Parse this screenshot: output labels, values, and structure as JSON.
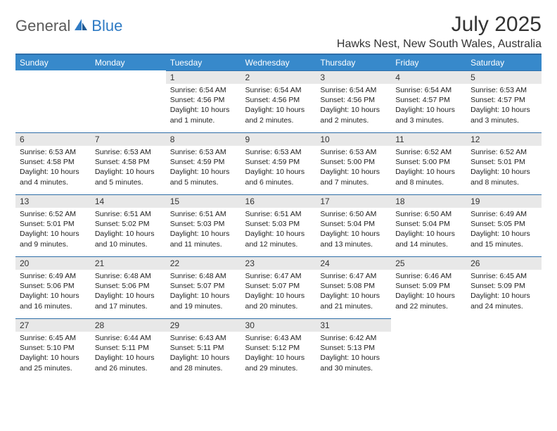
{
  "logo": {
    "general": "General",
    "blue": "Blue"
  },
  "title": "July 2025",
  "location": "Hawks Nest, New South Wales, Australia",
  "colors": {
    "header_bg": "#3789cb",
    "header_border": "#2f6ea8",
    "day_num_bg": "#e8e8e8",
    "logo_blue": "#2f7bc4",
    "logo_grey": "#5a5a5a"
  },
  "weekdays": [
    "Sunday",
    "Monday",
    "Tuesday",
    "Wednesday",
    "Thursday",
    "Friday",
    "Saturday"
  ],
  "weeks": [
    [
      null,
      null,
      {
        "n": "1",
        "sr": "Sunrise: 6:54 AM",
        "ss": "Sunset: 4:56 PM",
        "d1": "Daylight: 10 hours",
        "d2": "and 1 minute."
      },
      {
        "n": "2",
        "sr": "Sunrise: 6:54 AM",
        "ss": "Sunset: 4:56 PM",
        "d1": "Daylight: 10 hours",
        "d2": "and 2 minutes."
      },
      {
        "n": "3",
        "sr": "Sunrise: 6:54 AM",
        "ss": "Sunset: 4:56 PM",
        "d1": "Daylight: 10 hours",
        "d2": "and 2 minutes."
      },
      {
        "n": "4",
        "sr": "Sunrise: 6:54 AM",
        "ss": "Sunset: 4:57 PM",
        "d1": "Daylight: 10 hours",
        "d2": "and 3 minutes."
      },
      {
        "n": "5",
        "sr": "Sunrise: 6:53 AM",
        "ss": "Sunset: 4:57 PM",
        "d1": "Daylight: 10 hours",
        "d2": "and 3 minutes."
      }
    ],
    [
      {
        "n": "6",
        "sr": "Sunrise: 6:53 AM",
        "ss": "Sunset: 4:58 PM",
        "d1": "Daylight: 10 hours",
        "d2": "and 4 minutes."
      },
      {
        "n": "7",
        "sr": "Sunrise: 6:53 AM",
        "ss": "Sunset: 4:58 PM",
        "d1": "Daylight: 10 hours",
        "d2": "and 5 minutes."
      },
      {
        "n": "8",
        "sr": "Sunrise: 6:53 AM",
        "ss": "Sunset: 4:59 PM",
        "d1": "Daylight: 10 hours",
        "d2": "and 5 minutes."
      },
      {
        "n": "9",
        "sr": "Sunrise: 6:53 AM",
        "ss": "Sunset: 4:59 PM",
        "d1": "Daylight: 10 hours",
        "d2": "and 6 minutes."
      },
      {
        "n": "10",
        "sr": "Sunrise: 6:53 AM",
        "ss": "Sunset: 5:00 PM",
        "d1": "Daylight: 10 hours",
        "d2": "and 7 minutes."
      },
      {
        "n": "11",
        "sr": "Sunrise: 6:52 AM",
        "ss": "Sunset: 5:00 PM",
        "d1": "Daylight: 10 hours",
        "d2": "and 8 minutes."
      },
      {
        "n": "12",
        "sr": "Sunrise: 6:52 AM",
        "ss": "Sunset: 5:01 PM",
        "d1": "Daylight: 10 hours",
        "d2": "and 8 minutes."
      }
    ],
    [
      {
        "n": "13",
        "sr": "Sunrise: 6:52 AM",
        "ss": "Sunset: 5:01 PM",
        "d1": "Daylight: 10 hours",
        "d2": "and 9 minutes."
      },
      {
        "n": "14",
        "sr": "Sunrise: 6:51 AM",
        "ss": "Sunset: 5:02 PM",
        "d1": "Daylight: 10 hours",
        "d2": "and 10 minutes."
      },
      {
        "n": "15",
        "sr": "Sunrise: 6:51 AM",
        "ss": "Sunset: 5:03 PM",
        "d1": "Daylight: 10 hours",
        "d2": "and 11 minutes."
      },
      {
        "n": "16",
        "sr": "Sunrise: 6:51 AM",
        "ss": "Sunset: 5:03 PM",
        "d1": "Daylight: 10 hours",
        "d2": "and 12 minutes."
      },
      {
        "n": "17",
        "sr": "Sunrise: 6:50 AM",
        "ss": "Sunset: 5:04 PM",
        "d1": "Daylight: 10 hours",
        "d2": "and 13 minutes."
      },
      {
        "n": "18",
        "sr": "Sunrise: 6:50 AM",
        "ss": "Sunset: 5:04 PM",
        "d1": "Daylight: 10 hours",
        "d2": "and 14 minutes."
      },
      {
        "n": "19",
        "sr": "Sunrise: 6:49 AM",
        "ss": "Sunset: 5:05 PM",
        "d1": "Daylight: 10 hours",
        "d2": "and 15 minutes."
      }
    ],
    [
      {
        "n": "20",
        "sr": "Sunrise: 6:49 AM",
        "ss": "Sunset: 5:06 PM",
        "d1": "Daylight: 10 hours",
        "d2": "and 16 minutes."
      },
      {
        "n": "21",
        "sr": "Sunrise: 6:48 AM",
        "ss": "Sunset: 5:06 PM",
        "d1": "Daylight: 10 hours",
        "d2": "and 17 minutes."
      },
      {
        "n": "22",
        "sr": "Sunrise: 6:48 AM",
        "ss": "Sunset: 5:07 PM",
        "d1": "Daylight: 10 hours",
        "d2": "and 19 minutes."
      },
      {
        "n": "23",
        "sr": "Sunrise: 6:47 AM",
        "ss": "Sunset: 5:07 PM",
        "d1": "Daylight: 10 hours",
        "d2": "and 20 minutes."
      },
      {
        "n": "24",
        "sr": "Sunrise: 6:47 AM",
        "ss": "Sunset: 5:08 PM",
        "d1": "Daylight: 10 hours",
        "d2": "and 21 minutes."
      },
      {
        "n": "25",
        "sr": "Sunrise: 6:46 AM",
        "ss": "Sunset: 5:09 PM",
        "d1": "Daylight: 10 hours",
        "d2": "and 22 minutes."
      },
      {
        "n": "26",
        "sr": "Sunrise: 6:45 AM",
        "ss": "Sunset: 5:09 PM",
        "d1": "Daylight: 10 hours",
        "d2": "and 24 minutes."
      }
    ],
    [
      {
        "n": "27",
        "sr": "Sunrise: 6:45 AM",
        "ss": "Sunset: 5:10 PM",
        "d1": "Daylight: 10 hours",
        "d2": "and 25 minutes."
      },
      {
        "n": "28",
        "sr": "Sunrise: 6:44 AM",
        "ss": "Sunset: 5:11 PM",
        "d1": "Daylight: 10 hours",
        "d2": "and 26 minutes."
      },
      {
        "n": "29",
        "sr": "Sunrise: 6:43 AM",
        "ss": "Sunset: 5:11 PM",
        "d1": "Daylight: 10 hours",
        "d2": "and 28 minutes."
      },
      {
        "n": "30",
        "sr": "Sunrise: 6:43 AM",
        "ss": "Sunset: 5:12 PM",
        "d1": "Daylight: 10 hours",
        "d2": "and 29 minutes."
      },
      {
        "n": "31",
        "sr": "Sunrise: 6:42 AM",
        "ss": "Sunset: 5:13 PM",
        "d1": "Daylight: 10 hours",
        "d2": "and 30 minutes."
      },
      null,
      null
    ]
  ]
}
